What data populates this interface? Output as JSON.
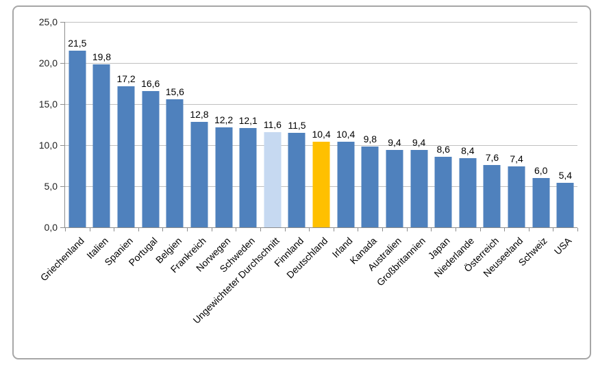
{
  "chart_data": {
    "type": "bar",
    "title": "",
    "xlabel": "",
    "ylabel": "",
    "ylim": [
      0,
      25
    ],
    "grid": true,
    "legend": false,
    "decimal_style": "comma",
    "colors": {
      "default": "#4F81BD",
      "average_highlight": "#C6D9F1",
      "germany_highlight": "#FFC000",
      "gridline": "#BFBFBF",
      "axis": "#8C8C8C",
      "frame_border": "#A6A6A6"
    },
    "y_ticks": [
      {
        "value": 25,
        "label": "25,0"
      },
      {
        "value": 20,
        "label": "20,0"
      },
      {
        "value": 15,
        "label": "15,0"
      },
      {
        "value": 10,
        "label": "10,0"
      },
      {
        "value": 5,
        "label": "5,0"
      },
      {
        "value": 0,
        "label": "0,0"
      }
    ],
    "points": [
      {
        "category": "Griechenland",
        "value": 21.5,
        "label": "21,5"
      },
      {
        "category": "Italien",
        "value": 19.8,
        "label": "19,8"
      },
      {
        "category": "Spanien",
        "value": 17.2,
        "label": "17,2"
      },
      {
        "category": "Portugal",
        "value": 16.6,
        "label": "16,6"
      },
      {
        "category": "Belgien",
        "value": 15.6,
        "label": "15,6"
      },
      {
        "category": "Frankreich",
        "value": 12.8,
        "label": "12,8"
      },
      {
        "category": "Norwegen",
        "value": 12.2,
        "label": "12,2"
      },
      {
        "category": "Schweden",
        "value": 12.1,
        "label": "12,1"
      },
      {
        "category": "Ungewichteter Durchschnitt",
        "value": 11.6,
        "label": "11,6",
        "color_key": "average_highlight"
      },
      {
        "category": "Finnland",
        "value": 11.5,
        "label": "11,5"
      },
      {
        "category": "Deutschland",
        "value": 10.4,
        "label": "10,4",
        "color_key": "germany_highlight"
      },
      {
        "category": "Irland",
        "value": 10.4,
        "label": "10,4"
      },
      {
        "category": "Kanada",
        "value": 9.8,
        "label": "9,8"
      },
      {
        "category": "Australien",
        "value": 9.4,
        "label": "9,4"
      },
      {
        "category": "Großbritannien",
        "value": 9.4,
        "label": "9,4"
      },
      {
        "category": "Japan",
        "value": 8.6,
        "label": "8,6"
      },
      {
        "category": "Niederlande",
        "value": 8.4,
        "label": "8,4"
      },
      {
        "category": "Österreich",
        "value": 7.6,
        "label": "7,6"
      },
      {
        "category": "Neuseeland",
        "value": 7.4,
        "label": "7,4"
      },
      {
        "category": "Schweiz",
        "value": 6.0,
        "label": "6,0"
      },
      {
        "category": "USA",
        "value": 5.4,
        "label": "5,4"
      }
    ]
  }
}
